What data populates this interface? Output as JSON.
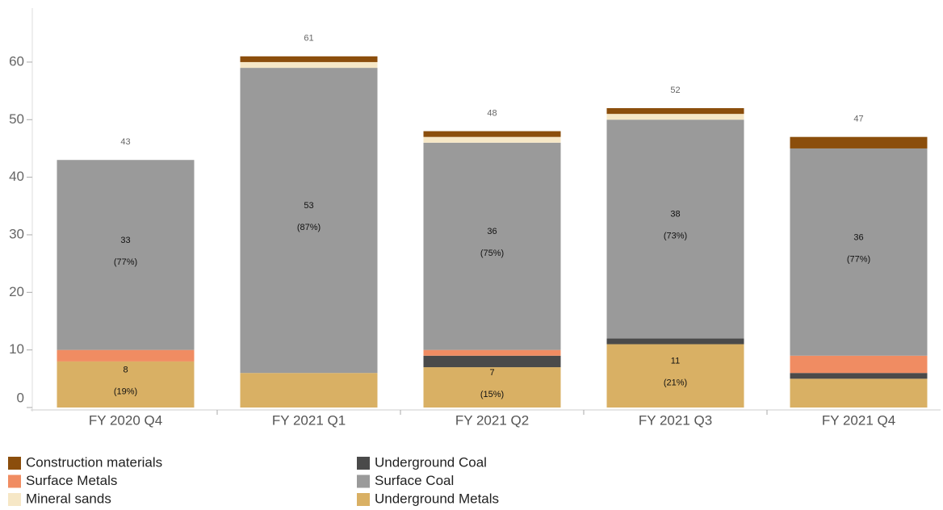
{
  "chart_data": {
    "type": "stacked_bar",
    "categories": [
      "FY 2020 Q4",
      "FY 2021 Q1",
      "FY 2021 Q2",
      "FY 2021 Q3",
      "FY 2021 Q4"
    ],
    "series": [
      {
        "name": "Underground Metals",
        "color": "#d9b064",
        "values": [
          8,
          6,
          7,
          11,
          5
        ],
        "share_labels": [
          "(19%)",
          null,
          "(15%)",
          "(21%)",
          null
        ]
      },
      {
        "name": "Underground Coal",
        "color": "#4a4a4a",
        "values": [
          0,
          0,
          2,
          1,
          1
        ]
      },
      {
        "name": "Surface Metals",
        "color": "#f08c62",
        "values": [
          2,
          0,
          1,
          0,
          3
        ]
      },
      {
        "name": "Surface Coal",
        "color": "#9a9a9a",
        "values": [
          33,
          53,
          36,
          38,
          36
        ],
        "share_labels": [
          "(77%)",
          "(87%)",
          "(75%)",
          "(73%)",
          "(77%)"
        ]
      },
      {
        "name": "Mineral sands",
        "color": "#f6e7c6",
        "values": [
          0,
          1,
          1,
          1,
          0
        ]
      },
      {
        "name": "Construction materials",
        "color": "#8b4e0c",
        "values": [
          0,
          1,
          1,
          1,
          2
        ]
      }
    ],
    "totals": [
      43,
      61,
      48,
      52,
      47
    ],
    "ylim": [
      0,
      67
    ],
    "yticks": [
      0,
      10,
      20,
      30,
      40,
      50,
      60
    ],
    "legend_order": [
      5,
      2,
      4,
      1,
      3,
      0
    ]
  }
}
